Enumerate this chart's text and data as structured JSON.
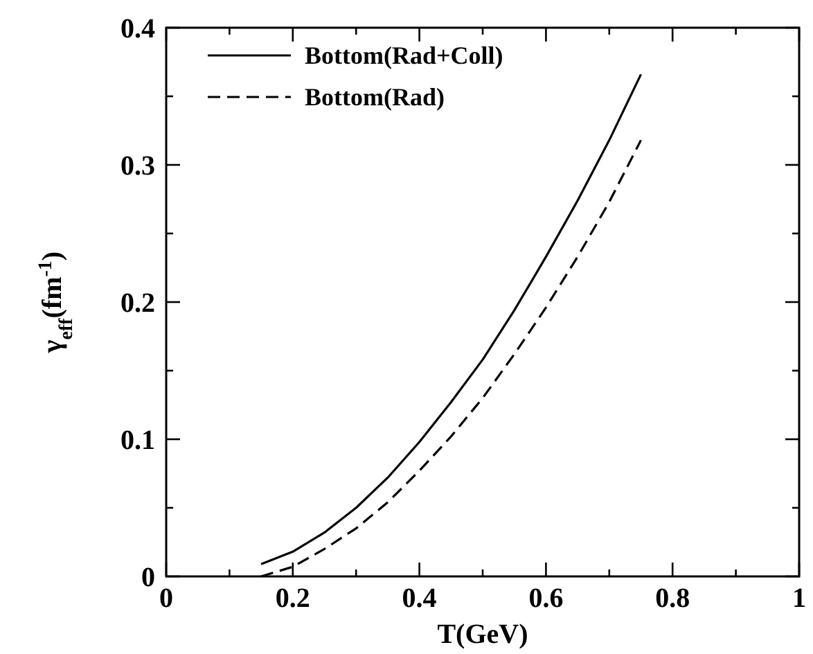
{
  "chart_data": {
    "type": "line",
    "xlabel": "T(GeV)",
    "ylabel": "γ$_{eff}$(fm$^{-1}$)",
    "xlim": [
      0,
      1
    ],
    "ylim": [
      0,
      0.4
    ],
    "xticks": [
      0,
      {
        "value": 0.1,
        "label": null
      },
      0.2,
      {
        "value": 0.3,
        "label": null
      },
      0.4,
      {
        "value": 0.5,
        "label": null
      },
      0.6,
      {
        "value": 0.7,
        "label": null
      },
      0.8,
      {
        "value": 0.9,
        "label": null
      },
      1
    ],
    "yticks": [
      0,
      {
        "value": 0.05,
        "label": null
      },
      0.1,
      {
        "value": 0.15,
        "label": null
      },
      0.2,
      {
        "value": 0.25,
        "label": null
      },
      0.3,
      {
        "value": 0.35,
        "label": null
      },
      0.4
    ],
    "grid": false,
    "legend": "top left",
    "marker": "none",
    "x": [
      0.15,
      0.2,
      0.25,
      0.3,
      0.35,
      0.4,
      0.45,
      0.5,
      0.55,
      0.6,
      0.65,
      0.7,
      0.75
    ],
    "series": [
      {
        "name": "Bottom(Rad+Coll)",
        "color": "#000000",
        "line_style": "solid",
        "values": [
          0.009,
          0.018,
          0.032,
          0.05,
          0.072,
          0.098,
          0.127,
          0.158,
          0.194,
          0.233,
          0.274,
          0.318,
          0.366
        ]
      },
      {
        "name": "Bottom(Rad)",
        "color": "#000000",
        "line_style": "dashed",
        "values": [
          0.0,
          0.007,
          0.02,
          0.035,
          0.054,
          0.077,
          0.102,
          0.13,
          0.162,
          0.196,
          0.233,
          0.273,
          0.318
        ]
      }
    ]
  }
}
